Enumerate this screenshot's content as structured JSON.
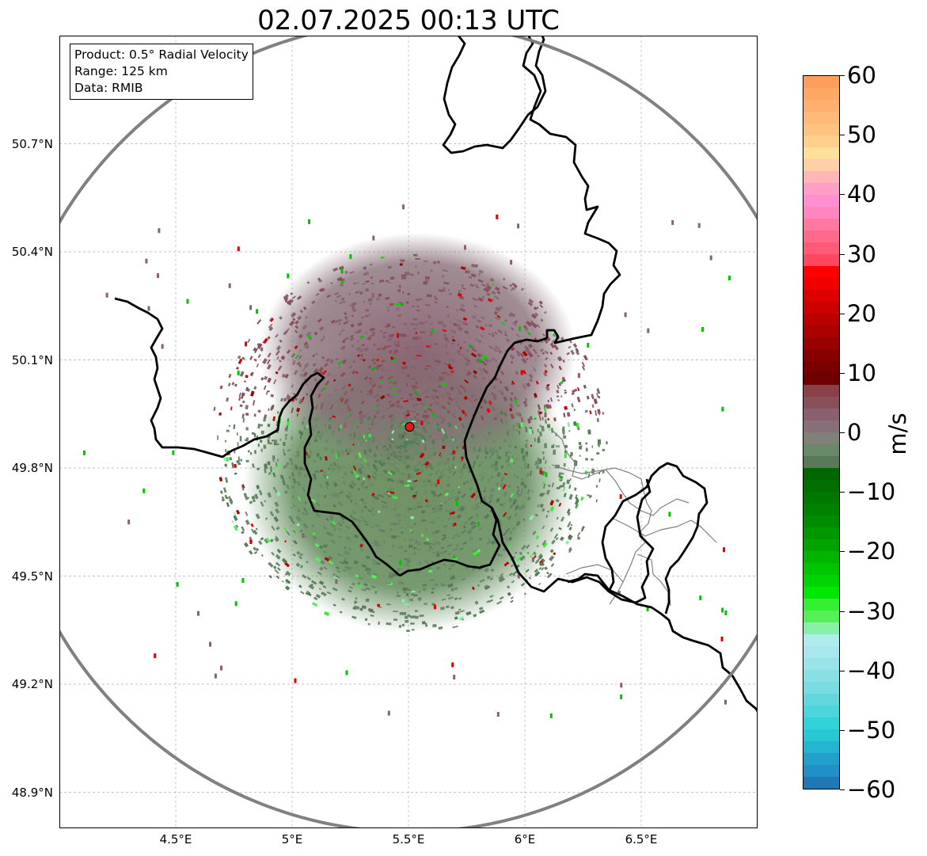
{
  "title": "02.07.2025 00:13 UTC",
  "info_box": {
    "product": "Product: 0.5° Radial Velocity",
    "range": "Range: 125 km",
    "data": "Data: RMIB"
  },
  "map": {
    "lon_range": [
      4.0,
      7.0
    ],
    "lat_range": [
      48.8,
      51.0
    ],
    "radar_site": {
      "lon": 5.505,
      "lat": 49.914
    },
    "range_km": 125,
    "lat_ticks": [
      {
        "value": 50.7,
        "label": "50.7°N"
      },
      {
        "value": 50.4,
        "label": "50.4°N"
      },
      {
        "value": 50.1,
        "label": "50.1°N"
      },
      {
        "value": 49.8,
        "label": "49.8°N"
      },
      {
        "value": 49.5,
        "label": "49.5°N"
      },
      {
        "value": 49.2,
        "label": "49.2°N"
      },
      {
        "value": 48.9,
        "label": "48.9°N"
      }
    ],
    "lon_ticks": [
      {
        "value": 4.5,
        "label": "4.5°E"
      },
      {
        "value": 5.0,
        "label": "5°E"
      },
      {
        "value": 5.5,
        "label": "5.5°E"
      },
      {
        "value": 6.0,
        "label": "6°E"
      },
      {
        "value": 6.5,
        "label": "6.5°E"
      }
    ],
    "colors": {
      "range_ring": "#808080",
      "border": "#000000",
      "province_line": "#808080",
      "grid": "#b0b0b0",
      "site_marker": "#e41a1c"
    }
  },
  "colorbar": {
    "unit": "m/s",
    "vmin": -60,
    "vmax": 60,
    "ticks": [
      {
        "value": 60,
        "label": "60"
      },
      {
        "value": 50,
        "label": "50"
      },
      {
        "value": 40,
        "label": "40"
      },
      {
        "value": 30,
        "label": "30"
      },
      {
        "value": 20,
        "label": "20"
      },
      {
        "value": 10,
        "label": "10"
      },
      {
        "value": 0,
        "label": "0"
      },
      {
        "value": -10,
        "label": "−10"
      },
      {
        "value": -20,
        "label": "−20"
      },
      {
        "value": -30,
        "label": "−30"
      },
      {
        "value": -40,
        "label": "−40"
      },
      {
        "value": -50,
        "label": "−50"
      },
      {
        "value": -60,
        "label": "−60"
      }
    ],
    "segments": [
      {
        "from": 58,
        "to": 60,
        "color": "#ff9e5a"
      },
      {
        "from": 56,
        "to": 58,
        "color": "#ffa866"
      },
      {
        "from": 54,
        "to": 56,
        "color": "#ffb070"
      },
      {
        "from": 52,
        "to": 54,
        "color": "#ffb978"
      },
      {
        "from": 50,
        "to": 52,
        "color": "#ffc380"
      },
      {
        "from": 48,
        "to": 50,
        "color": "#ffcf8c"
      },
      {
        "from": 46,
        "to": 48,
        "color": "#ffe09a"
      },
      {
        "from": 44,
        "to": 46,
        "color": "#ffd0a8"
      },
      {
        "from": 42,
        "to": 44,
        "color": "#ffb6b6"
      },
      {
        "from": 40,
        "to": 42,
        "color": "#ff9fc8"
      },
      {
        "from": 38,
        "to": 40,
        "color": "#ff8fd0"
      },
      {
        "from": 36,
        "to": 38,
        "color": "#ff85c0"
      },
      {
        "from": 34,
        "to": 36,
        "color": "#ff78a4"
      },
      {
        "from": 32,
        "to": 34,
        "color": "#ff6a8c"
      },
      {
        "from": 30,
        "to": 32,
        "color": "#ff5a78"
      },
      {
        "from": 28,
        "to": 30,
        "color": "#ff4860"
      },
      {
        "from": 26,
        "to": 28,
        "color": "#ff0000"
      },
      {
        "from": 24,
        "to": 26,
        "color": "#f00000"
      },
      {
        "from": 22,
        "to": 24,
        "color": "#de0000"
      },
      {
        "from": 20,
        "to": 22,
        "color": "#cc0000"
      },
      {
        "from": 18,
        "to": 20,
        "color": "#bb0000"
      },
      {
        "from": 16,
        "to": 18,
        "color": "#aa0000"
      },
      {
        "from": 14,
        "to": 16,
        "color": "#990000"
      },
      {
        "from": 12,
        "to": 14,
        "color": "#880000"
      },
      {
        "from": 10,
        "to": 12,
        "color": "#7a0000"
      },
      {
        "from": 8,
        "to": 10,
        "color": "#6e0000"
      },
      {
        "from": 6,
        "to": 8,
        "color": "#8a4048"
      },
      {
        "from": 4,
        "to": 6,
        "color": "#885058"
      },
      {
        "from": 2,
        "to": 4,
        "color": "#886070"
      },
      {
        "from": 0,
        "to": 2,
        "color": "#887078"
      },
      {
        "from": -2,
        "to": 0,
        "color": "#808078"
      },
      {
        "from": -4,
        "to": -2,
        "color": "#688868"
      },
      {
        "from": -6,
        "to": -4,
        "color": "#587a58"
      },
      {
        "from": -8,
        "to": -6,
        "color": "#006600"
      },
      {
        "from": -10,
        "to": -8,
        "color": "#006e00"
      },
      {
        "from": -12,
        "to": -10,
        "color": "#007800"
      },
      {
        "from": -14,
        "to": -12,
        "color": "#008200"
      },
      {
        "from": -16,
        "to": -14,
        "color": "#008c00"
      },
      {
        "from": -18,
        "to": -16,
        "color": "#009800"
      },
      {
        "from": -20,
        "to": -18,
        "color": "#00a400"
      },
      {
        "from": -22,
        "to": -20,
        "color": "#00b400"
      },
      {
        "from": -24,
        "to": -22,
        "color": "#00c400"
      },
      {
        "from": -26,
        "to": -24,
        "color": "#00d400"
      },
      {
        "from": -28,
        "to": -26,
        "color": "#00e800"
      },
      {
        "from": -30,
        "to": -28,
        "color": "#33f033"
      },
      {
        "from": -32,
        "to": -30,
        "color": "#55f055"
      },
      {
        "from": -34,
        "to": -32,
        "color": "#88f0a8"
      },
      {
        "from": -36,
        "to": -34,
        "color": "#b0ecec"
      },
      {
        "from": -38,
        "to": -36,
        "color": "#a8e8ec"
      },
      {
        "from": -40,
        "to": -38,
        "color": "#98e4e8"
      },
      {
        "from": -42,
        "to": -40,
        "color": "#88e0e4"
      },
      {
        "from": -44,
        "to": -42,
        "color": "#78dce0"
      },
      {
        "from": -46,
        "to": -44,
        "color": "#62d8dc"
      },
      {
        "from": -48,
        "to": -46,
        "color": "#4ad6da"
      },
      {
        "from": -50,
        "to": -48,
        "color": "#30d4d8"
      },
      {
        "from": -52,
        "to": -50,
        "color": "#26c8d4"
      },
      {
        "from": -54,
        "to": -52,
        "color": "#22b4d0"
      },
      {
        "from": -56,
        "to": -54,
        "color": "#22a0cc"
      },
      {
        "from": -58,
        "to": -56,
        "color": "#2290c8"
      },
      {
        "from": -60,
        "to": -58,
        "color": "#1f77b4"
      }
    ]
  }
}
